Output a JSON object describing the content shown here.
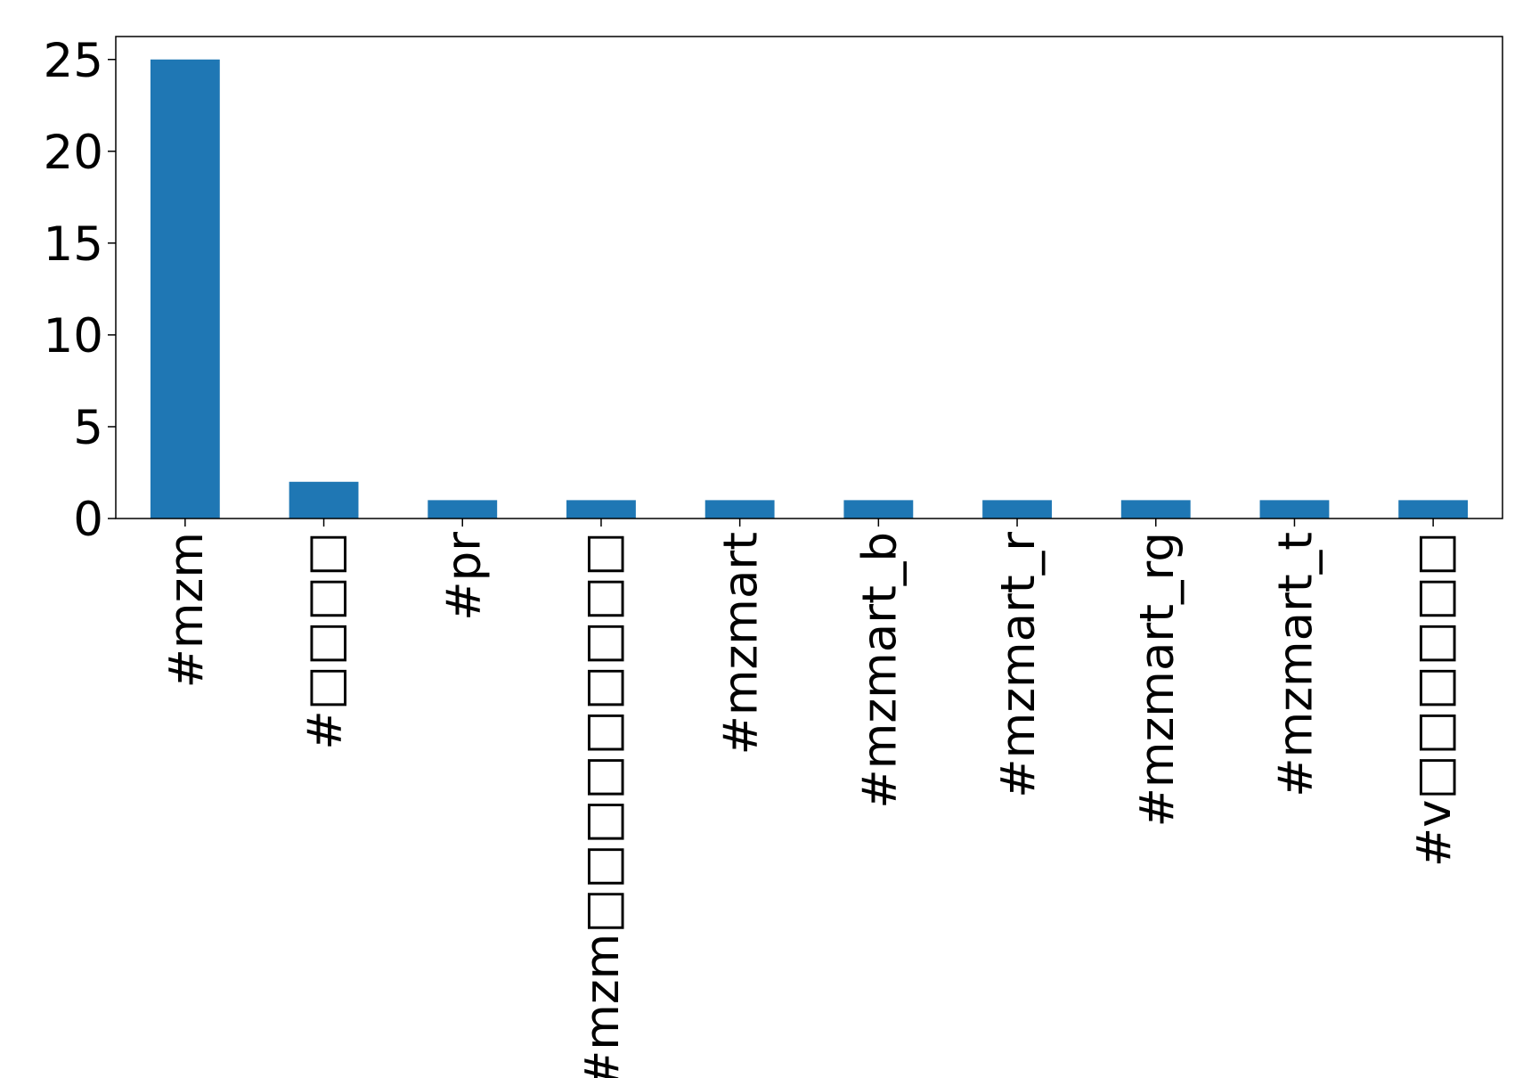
{
  "chart_data": {
    "type": "bar",
    "categories": [
      "#mzm",
      "#□□□□",
      "#pr",
      "#mzm□□□□□□□□□",
      "#mzmart",
      "#mzmart_b",
      "#mzmart_r",
      "#mzmart_rg",
      "#mzmart_t",
      "#v□□□□□□"
    ],
    "values": [
      25,
      2,
      1,
      1,
      1,
      1,
      1,
      1,
      1,
      1
    ],
    "color": "#1f77b4",
    "ylim": [
      0,
      26.25
    ],
    "yticks": [
      0,
      5,
      10,
      15,
      20,
      25
    ],
    "grid": false
  }
}
